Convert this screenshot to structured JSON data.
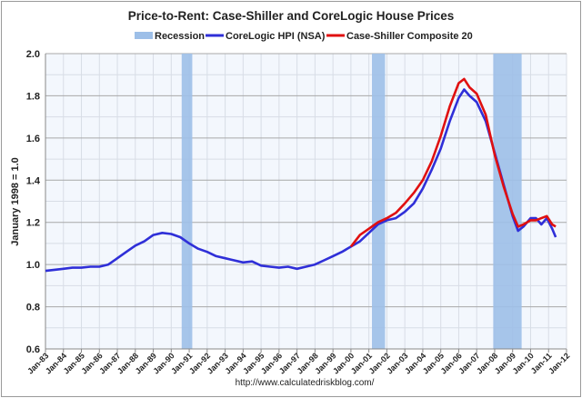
{
  "chart_data": {
    "type": "line",
    "title": "Price-to-Rent: Case-Shiller and CoreLogic House Prices",
    "xlabel": "",
    "ylabel": "January 1998 = 1.0",
    "source": "http://www.calculatedriskblog.com/",
    "ylim": [
      0.6,
      2.0
    ],
    "yticks": [
      "0.6",
      "0.8",
      "1.0",
      "1.2",
      "1.4",
      "1.6",
      "1.8",
      "2.0"
    ],
    "xlim": [
      1983,
      2012
    ],
    "xticks": [
      "Jan-83",
      "Jan-84",
      "Jan-85",
      "Jan-86",
      "Jan-87",
      "Jan-88",
      "Jan-89",
      "Jan-90",
      "Jan-91",
      "Jan-92",
      "Jan-93",
      "Jan-94",
      "Jan-95",
      "Jan-96",
      "Jan-97",
      "Jan-98",
      "Jan-99",
      "Jan-00",
      "Jan-01",
      "Jan-02",
      "Jan-03",
      "Jan-04",
      "Jan-05",
      "Jan-06",
      "Jan-07",
      "Jan-08",
      "Jan-09",
      "Jan-10",
      "Jan-11",
      "Jan-12"
    ],
    "grid": true,
    "legend_position": "top",
    "legend": [
      {
        "name": "Recession",
        "color": "#9dbfe8"
      },
      {
        "name": "CoreLogic HPI (NSA)",
        "color": "#2f2fd8"
      },
      {
        "name": "Case-Shiller Composite 20",
        "color": "#e01010"
      }
    ],
    "recessions": [
      [
        1990.58,
        1991.17
      ],
      [
        2001.17,
        2001.9
      ],
      [
        2007.92,
        2009.5
      ]
    ],
    "series": [
      {
        "name": "CoreLogic HPI (NSA)",
        "color": "#2f2fd8",
        "x": [
          1983,
          1983.5,
          1984,
          1984.5,
          1985,
          1985.5,
          1986,
          1986.5,
          1987,
          1987.5,
          1988,
          1988.5,
          1989,
          1989.5,
          1990,
          1990.5,
          1991,
          1991.5,
          1992,
          1992.5,
          1993,
          1993.5,
          1994,
          1994.5,
          1995,
          1995.5,
          1996,
          1996.5,
          1997,
          1997.5,
          1998,
          1998.5,
          1999,
          1999.5,
          2000,
          2000.5,
          2001,
          2001.5,
          2002,
          2002.5,
          2003,
          2003.5,
          2004,
          2004.5,
          2005,
          2005.5,
          2006,
          2006.3,
          2006.6,
          2007,
          2007.5,
          2008,
          2008.5,
          2009,
          2009.3,
          2009.6,
          2010,
          2010.3,
          2010.6,
          2010.9,
          2011.2,
          2011.4
        ],
        "y": [
          0.97,
          0.975,
          0.98,
          0.985,
          0.985,
          0.99,
          0.99,
          1.0,
          1.03,
          1.06,
          1.09,
          1.11,
          1.14,
          1.15,
          1.145,
          1.13,
          1.1,
          1.075,
          1.06,
          1.04,
          1.03,
          1.02,
          1.01,
          1.015,
          0.995,
          0.99,
          0.985,
          0.99,
          0.98,
          0.99,
          1.0,
          1.02,
          1.04,
          1.06,
          1.085,
          1.11,
          1.15,
          1.19,
          1.21,
          1.22,
          1.25,
          1.29,
          1.36,
          1.45,
          1.55,
          1.68,
          1.79,
          1.83,
          1.8,
          1.77,
          1.68,
          1.53,
          1.38,
          1.23,
          1.16,
          1.18,
          1.22,
          1.22,
          1.19,
          1.22,
          1.17,
          1.13
        ]
      },
      {
        "name": "Case-Shiller Composite 20",
        "color": "#e01010",
        "x": [
          2000,
          2000.5,
          2001,
          2001.5,
          2002,
          2002.5,
          2003,
          2003.5,
          2004,
          2004.5,
          2005,
          2005.5,
          2006,
          2006.3,
          2006.6,
          2007,
          2007.5,
          2008,
          2008.5,
          2009,
          2009.3,
          2009.6,
          2010,
          2010.3,
          2010.6,
          2010.9,
          2011.2,
          2011.4
        ],
        "y": [
          1.085,
          1.14,
          1.17,
          1.2,
          1.22,
          1.245,
          1.29,
          1.34,
          1.4,
          1.49,
          1.61,
          1.75,
          1.86,
          1.88,
          1.84,
          1.81,
          1.71,
          1.52,
          1.37,
          1.24,
          1.18,
          1.19,
          1.21,
          1.21,
          1.22,
          1.23,
          1.19,
          1.18
        ]
      }
    ]
  }
}
